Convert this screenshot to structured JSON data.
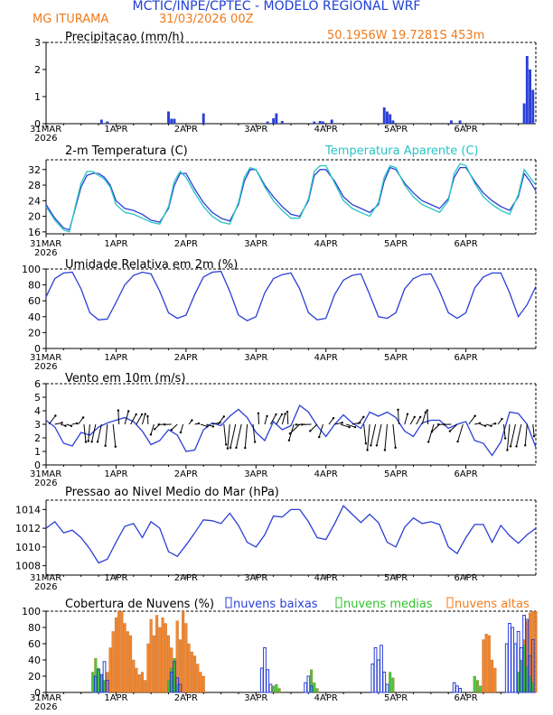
{
  "header": {
    "title": "MCTIC/INPE/CPTEC - MODELO REGIONAL WRF",
    "location": "MG ITURAMA",
    "run": "31/03/2026 00Z",
    "coords": "50.1956W 19.7281S 453m"
  },
  "colors": {
    "title": "#1f3fd6",
    "orange": "#f07a1a",
    "blue": "#2a3fd6",
    "cyan": "#28c4c4",
    "green": "#33c12d",
    "black": "#000000"
  },
  "x_axis": {
    "ticks": [
      0,
      24,
      48,
      72,
      96,
      120,
      144
    ],
    "labels": [
      "31MAR",
      "1APR",
      "2APR",
      "3APR",
      "4APR",
      "5APR",
      "6APR"
    ],
    "year": "2026",
    "domain_hours": [
      0,
      168
    ]
  },
  "chart_data": [
    {
      "id": "precip",
      "type": "bar",
      "title": "Precipitacao (mm/h)",
      "ylim": [
        0,
        3
      ],
      "yticks": [
        0,
        1,
        2,
        3
      ],
      "hours": [
        19,
        21,
        42,
        43,
        44,
        54,
        76,
        78,
        79,
        81,
        92,
        94,
        95,
        98,
        116,
        117,
        118,
        119,
        139,
        142,
        164,
        165,
        166,
        167
      ],
      "values": [
        0.15,
        0.08,
        0.45,
        0.18,
        0.18,
        0.38,
        0.08,
        0.2,
        0.38,
        0.1,
        0.08,
        0.1,
        0.08,
        0.15,
        0.6,
        0.45,
        0.35,
        0.12,
        0.12,
        0.12,
        0.75,
        2.5,
        2.0,
        1.25
      ]
    },
    {
      "id": "temp",
      "type": "line",
      "title": "2-m Temperatura (C)",
      "ylim": [
        15.5,
        34.5
      ],
      "yticks": [
        16,
        20,
        24,
        28,
        32
      ],
      "series": [
        {
          "name": "",
          "color_key": "blue",
          "x": [
            0,
            3,
            6,
            8,
            10,
            12,
            14,
            16,
            18,
            20,
            22,
            24,
            27,
            30,
            33,
            36,
            39,
            42,
            44,
            46,
            48,
            51,
            54,
            57,
            60,
            63,
            66,
            68,
            70,
            72,
            75,
            78,
            81,
            84,
            87,
            90,
            92,
            94,
            96,
            99,
            102,
            105,
            108,
            111,
            114,
            116,
            118,
            120,
            123,
            126,
            129,
            132,
            135,
            138,
            140,
            142,
            144,
            147,
            150,
            153,
            156,
            159,
            162,
            164,
            166,
            168
          ],
          "y": [
            23,
            19.5,
            17,
            16.5,
            22,
            27.5,
            30.5,
            31,
            31,
            30,
            28,
            24,
            22,
            21.5,
            20.5,
            19,
            18.5,
            22,
            28,
            31,
            31,
            27,
            23.5,
            21,
            19.5,
            18.8,
            23,
            29,
            32,
            32,
            28,
            25,
            22.5,
            20.5,
            20,
            24,
            30.5,
            32,
            32,
            29,
            25,
            23,
            22,
            21,
            23,
            29,
            32.5,
            32,
            28.5,
            26,
            24,
            23,
            22,
            24.5,
            30,
            32.5,
            32.5,
            29,
            26,
            24,
            22.5,
            21.5,
            25,
            31,
            29,
            26.5
          ]
        },
        {
          "name": "Temperatura Aparente (C)",
          "color_key": "cyan",
          "x": [
            0,
            3,
            6,
            8,
            10,
            12,
            14,
            16,
            18,
            20,
            22,
            24,
            27,
            30,
            33,
            36,
            39,
            42,
            44,
            46,
            48,
            51,
            54,
            57,
            60,
            63,
            66,
            68,
            70,
            72,
            75,
            78,
            81,
            84,
            87,
            90,
            92,
            94,
            96,
            99,
            102,
            105,
            108,
            111,
            114,
            116,
            118,
            120,
            123,
            126,
            129,
            132,
            135,
            138,
            140,
            142,
            144,
            147,
            150,
            153,
            156,
            159,
            162,
            164,
            166,
            168
          ],
          "y": [
            22.5,
            19,
            16.5,
            16,
            22.5,
            28.5,
            31.5,
            31.5,
            30.5,
            29.5,
            27.5,
            23,
            21,
            20.5,
            19.5,
            18.5,
            18,
            22.5,
            29,
            31.5,
            30,
            26,
            22.5,
            20,
            18.5,
            18,
            23.5,
            30,
            32.5,
            32,
            27.5,
            24,
            21.5,
            19.5,
            19.5,
            24.5,
            31.5,
            33,
            33,
            28.5,
            24,
            22,
            21,
            20,
            23.5,
            30,
            33,
            32.5,
            28,
            25,
            23,
            22,
            21,
            24,
            31,
            33.5,
            33,
            28.5,
            25,
            23,
            21.5,
            20.5,
            25.5,
            32,
            30,
            28
          ]
        }
      ]
    },
    {
      "id": "rh",
      "type": "line",
      "title": "Umidade Relativa em 2m (%)",
      "ylim": [
        0,
        100
      ],
      "yticks": [
        0,
        20,
        40,
        60,
        80,
        100
      ],
      "x": [
        0,
        3,
        6,
        9,
        12,
        15,
        18,
        21,
        24,
        27,
        30,
        33,
        36,
        39,
        42,
        45,
        48,
        51,
        54,
        57,
        60,
        63,
        66,
        69,
        72,
        75,
        78,
        81,
        84,
        87,
        90,
        93,
        96,
        99,
        102,
        105,
        108,
        111,
        114,
        117,
        120,
        123,
        126,
        129,
        132,
        135,
        138,
        141,
        144,
        147,
        150,
        153,
        156,
        159,
        162,
        165,
        168
      ],
      "y": [
        65,
        88,
        95,
        96,
        75,
        45,
        36,
        37,
        58,
        80,
        92,
        96,
        94,
        72,
        45,
        38,
        42,
        68,
        90,
        96,
        97,
        72,
        42,
        35,
        40,
        70,
        88,
        93,
        95,
        75,
        45,
        36,
        38,
        68,
        86,
        92,
        94,
        68,
        40,
        38,
        45,
        75,
        88,
        93,
        94,
        72,
        45,
        38,
        45,
        76,
        90,
        95,
        95,
        70,
        40,
        55,
        78
      ]
    },
    {
      "id": "wind",
      "type": "line",
      "title": "Vento em 10m (m/s)",
      "ylim": [
        0,
        6
      ],
      "yticks": [
        0,
        1,
        2,
        3,
        4,
        5,
        6
      ],
      "x": [
        0,
        3,
        6,
        9,
        12,
        15,
        18,
        21,
        24,
        27,
        30,
        33,
        36,
        39,
        42,
        45,
        48,
        51,
        54,
        57,
        60,
        63,
        66,
        69,
        72,
        75,
        78,
        81,
        84,
        87,
        90,
        93,
        96,
        99,
        102,
        105,
        108,
        111,
        114,
        117,
        120,
        123,
        126,
        129,
        132,
        135,
        138,
        141,
        144,
        147,
        150,
        153,
        156,
        159,
        162,
        165,
        168
      ],
      "y": [
        3.3,
        2.8,
        1.6,
        1.4,
        2.4,
        2.2,
        2.8,
        3.1,
        3.3,
        3.5,
        3.2,
        2.5,
        1.5,
        1.8,
        2.6,
        2.2,
        1.0,
        1.1,
        2.6,
        3.1,
        2.9,
        3.6,
        4.1,
        3.5,
        2.4,
        1.8,
        3.2,
        2.6,
        2.9,
        4.4,
        3.9,
        2.9,
        2.1,
        3.0,
        3.7,
        3.1,
        2.7,
        3.9,
        3.6,
        3.9,
        3.5,
        2.5,
        2.1,
        3.1,
        3.3,
        3.3,
        2.7,
        3.0,
        3.2,
        1.8,
        1.6,
        0.7,
        1.7,
        3.9,
        3.8,
        3.0,
        1.3
      ]
    },
    {
      "id": "press",
      "type": "line",
      "title": "Pressao ao Nivel Medio do Mar (hPa)",
      "ylim": [
        1007,
        1015
      ],
      "yticks": [
        1008,
        1010,
        1012,
        1014
      ],
      "x": [
        0,
        3,
        6,
        9,
        12,
        15,
        18,
        21,
        24,
        27,
        30,
        33,
        36,
        39,
        42,
        45,
        48,
        51,
        54,
        57,
        60,
        63,
        66,
        69,
        72,
        75,
        78,
        81,
        84,
        87,
        90,
        93,
        96,
        99,
        102,
        105,
        108,
        111,
        114,
        117,
        120,
        123,
        126,
        129,
        132,
        135,
        138,
        141,
        144,
        147,
        150,
        153,
        156,
        159,
        162,
        165,
        168
      ],
      "y": [
        1012,
        1012.7,
        1011.5,
        1011.8,
        1011,
        1009.8,
        1008.3,
        1008.7,
        1010.5,
        1012.2,
        1012.5,
        1011,
        1012.7,
        1012,
        1009.5,
        1009,
        1010.2,
        1011.5,
        1012.9,
        1012.8,
        1012.5,
        1013.6,
        1012.3,
        1010.5,
        1010,
        1011.3,
        1013.3,
        1013.2,
        1014,
        1014,
        1012.7,
        1011,
        1010.8,
        1012.5,
        1014.4,
        1013.5,
        1012.6,
        1013.5,
        1012.6,
        1010.5,
        1010,
        1012.1,
        1013.1,
        1012.5,
        1012.7,
        1012.4,
        1010,
        1009.3,
        1011,
        1012.4,
        1012.4,
        1010.5,
        1012.3,
        1011.2,
        1010.4,
        1011.3,
        1012
      ]
    },
    {
      "id": "clouds",
      "type": "bar",
      "title": "Cobertura de Nuvens (%)",
      "legend": [
        "nuvens baixas",
        "nuvens medias",
        "nuvens altas"
      ],
      "ylim": [
        0,
        100
      ],
      "yticks": [
        0,
        20,
        40,
        60,
        80,
        100
      ],
      "series": [
        {
          "name": "nuvens altas",
          "color_key": "orange",
          "fill": true,
          "hours": [
            21,
            22,
            23,
            24,
            25,
            26,
            27,
            28,
            29,
            30,
            31,
            32,
            33,
            34,
            35,
            36,
            37,
            38,
            39,
            40,
            41,
            42,
            43,
            44,
            45,
            46,
            47,
            48,
            49,
            50,
            51,
            52,
            53,
            54,
            150,
            151,
            152,
            153,
            154,
            164,
            165,
            166,
            167,
            168
          ],
          "values": [
            25,
            55,
            75,
            92,
            100,
            100,
            85,
            75,
            70,
            40,
            30,
            22,
            25,
            15,
            60,
            90,
            70,
            95,
            80,
            92,
            85,
            70,
            55,
            40,
            88,
            65,
            100,
            85,
            60,
            50,
            45,
            35,
            25,
            20,
            65,
            72,
            70,
            40,
            30,
            65,
            88,
            98,
            100,
            100
          ]
        },
        {
          "name": "nuvens medias",
          "color_key": "green",
          "fill": true,
          "hours": [
            16,
            17,
            18,
            19,
            20,
            42,
            43,
            44,
            45,
            78,
            79,
            80,
            91,
            92,
            93,
            118,
            119,
            147,
            148,
            149,
            162,
            163,
            164,
            165,
            166,
            167
          ],
          "values": [
            25,
            42,
            30,
            22,
            15,
            15,
            30,
            42,
            10,
            8,
            10,
            5,
            28,
            12,
            5,
            25,
            18,
            20,
            15,
            8,
            25,
            40,
            58,
            32,
            20,
            12
          ]
        },
        {
          "name": "nuvens baixas",
          "color_key": "blue",
          "fill": false,
          "hours": [
            17,
            18,
            19,
            20,
            21,
            43,
            44,
            45,
            46,
            74,
            75,
            76,
            77,
            89,
            90,
            91,
            112,
            113,
            114,
            115,
            116,
            117,
            140,
            141,
            142,
            158,
            159,
            160,
            161,
            162,
            163,
            164,
            165,
            166,
            167
          ],
          "values": [
            20,
            28,
            22,
            38,
            15,
            25,
            38,
            18,
            10,
            30,
            55,
            28,
            10,
            12,
            20,
            8,
            35,
            55,
            40,
            58,
            25,
            10,
            12,
            8,
            5,
            60,
            85,
            80,
            60,
            75,
            55,
            95,
            90,
            45,
            65
          ]
        }
      ]
    }
  ]
}
